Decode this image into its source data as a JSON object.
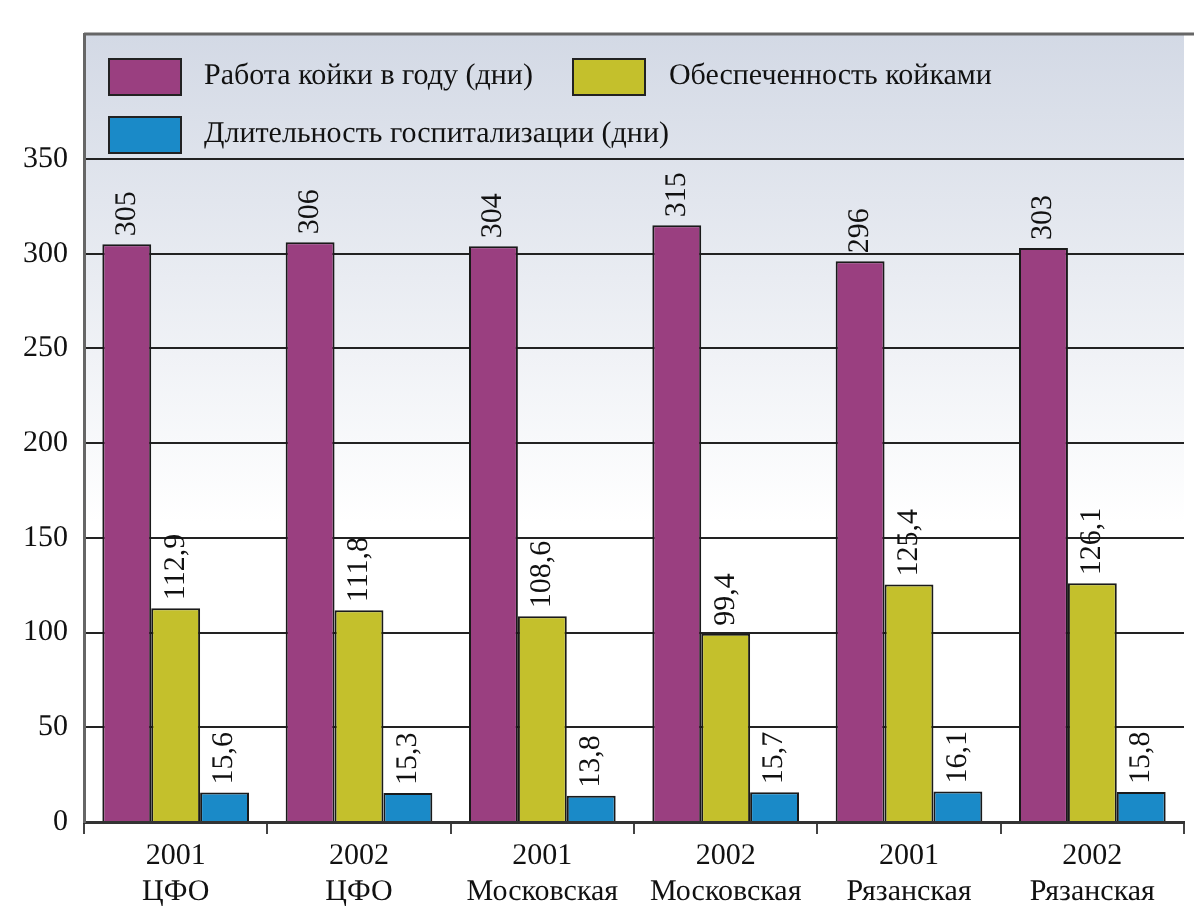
{
  "chart_data": {
    "type": "bar",
    "categories": [
      "2001 ЦФО",
      "2002 ЦФО",
      "2001 Московская",
      "2002 Московская",
      "2001 Рязанская",
      "2002 Рязанская"
    ],
    "series": [
      {
        "name": "Работа койки в году (дни)",
        "color": "#9a3f80",
        "values": [
          305,
          306,
          304,
          315,
          296,
          303
        ],
        "value_labels": [
          "305",
          "306",
          "304",
          "315",
          "296",
          "303"
        ]
      },
      {
        "name": "Обеспеченность койками",
        "color": "#c4c02c",
        "values": [
          112.9,
          111.8,
          108.6,
          99.4,
          125.4,
          126.1
        ],
        "value_labels": [
          "112,9",
          "111,8",
          "108,6",
          "99,4",
          "125,4",
          "126,1"
        ]
      },
      {
        "name": "Длительность госпитализации (дни)",
        "color": "#1a8ac8",
        "values": [
          15.6,
          15.3,
          13.8,
          15.7,
          16.1,
          15.8
        ],
        "value_labels": [
          "15,6",
          "15,3",
          "13,8",
          "15,7",
          "16,1",
          "15,8"
        ]
      }
    ],
    "ylim": [
      0,
      416
    ],
    "yticks": [
      0,
      50,
      100,
      150,
      200,
      250,
      300,
      350
    ],
    "grid": "y",
    "legend": "top"
  }
}
